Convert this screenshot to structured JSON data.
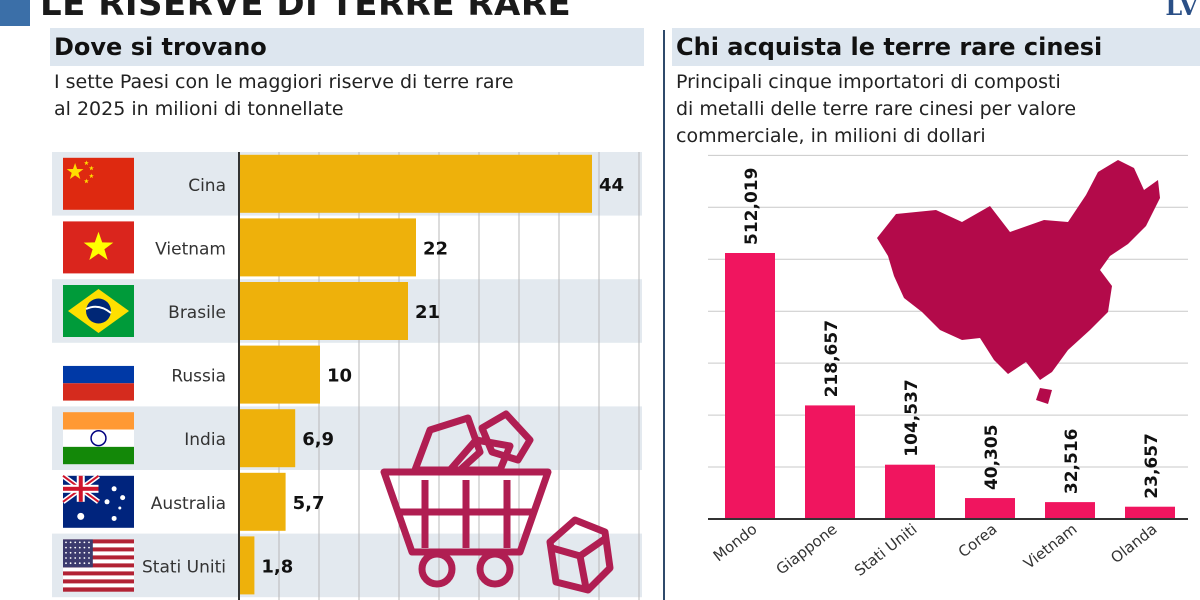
{
  "title": "LE RISERVE DI TERRE RARE",
  "brand": "LV",
  "colors": {
    "bar_left": "#eeb10b",
    "bar_right": "#f0155f",
    "map": "#b30a4a",
    "icon": "#b01e52",
    "stripe": "#e3e9ef"
  },
  "left_panel": {
    "heading": "Dove si trovano",
    "subtitle_line1": "I sette Paesi con le maggiori riserve di terre rare",
    "subtitle_line2": "al 2025 in milioni di tonnellate"
  },
  "right_panel": {
    "heading": "Chi acquista le terre rare cinesi",
    "subtitle_line1": "Principali cinque importatori di composti",
    "subtitle_line2": "di metalli delle terre rare cinesi per valore",
    "subtitle_line3": "commerciale, in milioni di dollari"
  },
  "chart_data": [
    {
      "type": "bar",
      "orientation": "horizontal",
      "categories": [
        "Cina",
        "Vietnam",
        "Brasile",
        "Russia",
        "India",
        "Australia",
        "Stati Uniti"
      ],
      "values": [
        44,
        22,
        21,
        10,
        6.9,
        5.7,
        1.8
      ],
      "value_labels": [
        "44",
        "22",
        "21",
        "10",
        "6,9",
        "5,7",
        "1,8"
      ],
      "xlim": [
        0,
        50
      ],
      "flag_icons": [
        "china-flag-icon",
        "vietnam-flag-icon",
        "brazil-flag-icon",
        "russia-flag-icon",
        "india-flag-icon",
        "australia-flag-icon",
        "usa-flag-icon"
      ],
      "grid": true
    },
    {
      "type": "bar",
      "orientation": "vertical",
      "categories": [
        "Mondo",
        "Giappone",
        "Stati Uniti",
        "Corea",
        "Vietnam",
        "Olanda"
      ],
      "values": [
        512019,
        218657,
        104537,
        40305,
        32516,
        23657
      ],
      "value_labels": [
        "512,019",
        "218,657",
        "104,537",
        "40,305",
        "32,516",
        "23,657"
      ],
      "ylim": [
        0,
        700000
      ],
      "grid": true,
      "background_icon": "china-map-icon"
    }
  ]
}
